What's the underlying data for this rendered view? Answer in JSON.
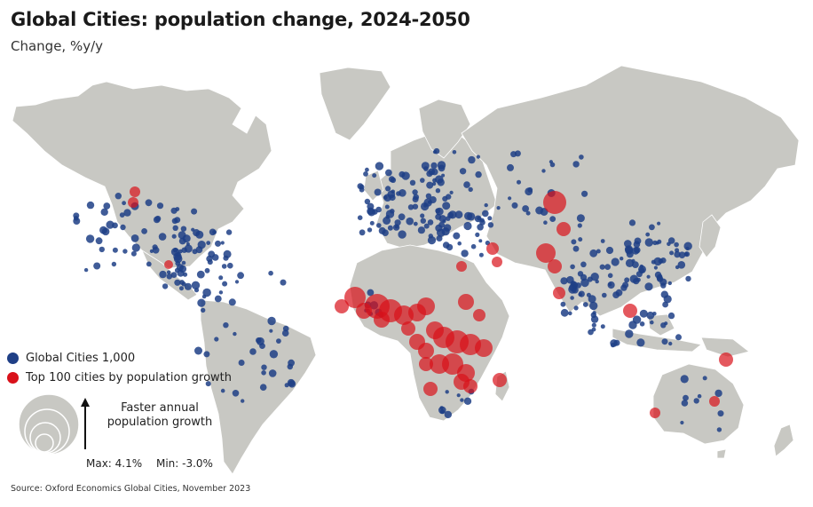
{
  "title": "Global Cities: population change, 2024-2050",
  "subtitle": "Change, %y/y",
  "legend": {
    "items": [
      {
        "label": "Global Cities 1,000",
        "color": "#1f3f86"
      },
      {
        "label": "Top 100 cities by population growth",
        "color": "#d9111a"
      }
    ],
    "size_label": "Faster annual population growth",
    "max_label": "Max: 4.1%",
    "min_label": "Min: -3.0%"
  },
  "source": "Source: Oxford Economics Global Cities, November 2023",
  "colors": {
    "land": "#c8c8c3",
    "border": "#ffffff",
    "global_city": "#1f3f86",
    "top_city": "#d9111a"
  }
}
